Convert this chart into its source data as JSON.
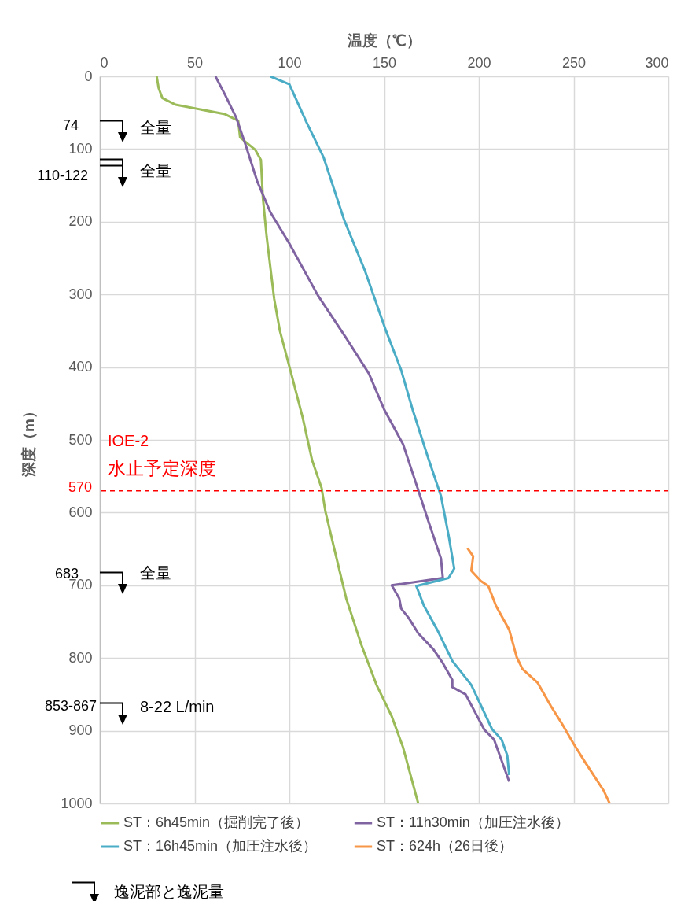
{
  "chart_data": {
    "type": "line",
    "xlabel": "温度（℃）",
    "ylabel": "深度（m）",
    "xlim": [
      0,
      300
    ],
    "xticks": [
      0,
      50,
      100,
      150,
      200,
      250,
      300
    ],
    "ylim": [
      1000,
      0
    ],
    "yticks": [
      0,
      100,
      200,
      300,
      400,
      500,
      600,
      700,
      800,
      900,
      1000
    ],
    "grid": true,
    "legend": "bottom",
    "series": [
      {
        "name": "ST：6h45min（掘削完了後）",
        "color": "#9bbb59",
        "x": [
          30,
          31,
          33,
          40,
          66,
          73,
          74,
          82,
          85,
          86,
          88,
          92,
          95,
          101,
          107,
          112,
          117,
          119,
          124,
          130,
          138,
          146,
          154,
          160,
          168
        ],
        "values": [
          0,
          16,
          30,
          39,
          52,
          61,
          84,
          101,
          115,
          166,
          220,
          306,
          350,
          409,
          469,
          528,
          566,
          598,
          653,
          718,
          782,
          837,
          880,
          923,
          1000
        ]
      },
      {
        "name": "ST：11h30min（加圧注水後）",
        "color": "#8064a2",
        "x": [
          61,
          66,
          72,
          77,
          83,
          90,
          100,
          115,
          130,
          142,
          150,
          160,
          167,
          173,
          180,
          181,
          154,
          158,
          159,
          163,
          168,
          176,
          181,
          186,
          186,
          193,
          203,
          208,
          216
        ],
        "values": [
          0,
          25,
          57,
          95,
          144,
          187,
          230,
          301,
          360,
          409,
          458,
          506,
          561,
          609,
          663,
          690,
          700,
          718,
          732,
          745,
          766,
          788,
          807,
          830,
          840,
          850,
          899,
          912,
          970
        ]
      },
      {
        "name": "ST：16h45min（加圧注水後）",
        "color": "#4bacc6",
        "x": [
          90,
          100,
          109,
          118,
          129,
          140,
          151,
          159,
          165,
          173,
          180,
          184,
          187,
          184,
          167,
          171,
          178,
          186,
          196,
          207,
          212,
          215,
          216
        ],
        "values": [
          0,
          11,
          63,
          111,
          198,
          268,
          350,
          404,
          458,
          523,
          577,
          631,
          677,
          690,
          701,
          728,
          761,
          804,
          837,
          898,
          912,
          934,
          961
        ]
      },
      {
        "name": "ST：624h（26日後）",
        "color": "#f79646",
        "x": [
          194,
          197,
          196,
          201,
          205,
          209,
          216,
          220,
          223,
          231,
          238,
          244,
          250,
          256,
          266,
          269
        ],
        "values": [
          649,
          660,
          680,
          694,
          701,
          728,
          761,
          799,
          815,
          834,
          866,
          891,
          918,
          943,
          983,
          1000
        ]
      }
    ],
    "ref_lines": [
      {
        "axis": "y",
        "value": 570,
        "label": "570",
        "color": "#ff0000",
        "line_style": "dashed"
      }
    ],
    "annotations": [
      "74",
      "全量",
      "110-122",
      "全量",
      "IOE-2",
      "水止予定深度",
      "683",
      "全量",
      "853-867",
      "8-22 L/min",
      "逸泥部と逸泥量"
    ]
  }
}
